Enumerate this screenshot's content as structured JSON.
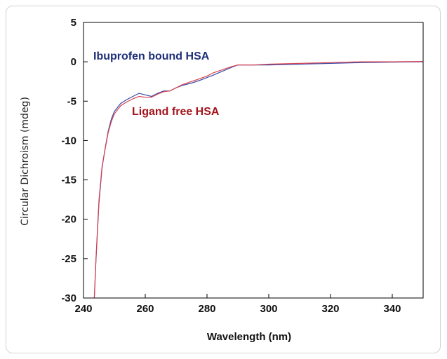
{
  "chart_data": {
    "type": "line",
    "title": "",
    "xlabel": "Wavelength (nm)",
    "ylabel": "Circular Dichroism (mdeg)",
    "xlim": [
      240,
      350
    ],
    "ylim": [
      -30,
      5
    ],
    "xticks": [
      240,
      260,
      280,
      300,
      320,
      340
    ],
    "yticks": [
      5,
      0,
      -5,
      -10,
      -15,
      -20,
      -25,
      -30
    ],
    "xtick_labels": [
      "240",
      "260",
      "280",
      "300",
      "320",
      "340"
    ],
    "ytick_labels": [
      "5",
      "0",
      "-5",
      "-10",
      "-15",
      "-20",
      "-25",
      "-30"
    ],
    "grid": false,
    "annotations": [
      {
        "text": "Ibuprofen bound HSA",
        "color": "#1f2f7a",
        "series": "ibuprofen"
      },
      {
        "text": "Ligand free HSA",
        "color": "#a3131b",
        "series": "free"
      }
    ],
    "series": [
      {
        "id": "ibuprofen",
        "color": "#3a4aa8",
        "x": [
          243.5,
          244,
          245,
          246,
          247,
          248,
          249,
          250,
          252,
          254,
          256,
          258,
          260,
          262,
          264,
          266,
          268,
          270,
          272,
          275,
          278,
          280,
          282,
          285,
          288,
          290,
          295,
          300,
          310,
          320,
          330,
          340,
          350
        ],
        "y": [
          -30,
          -25.5,
          -18,
          -13.5,
          -11,
          -8.8,
          -7.3,
          -6.3,
          -5.3,
          -4.8,
          -4.4,
          -4.0,
          -4.2,
          -4.4,
          -4.0,
          -3.7,
          -3.7,
          -3.3,
          -3.0,
          -2.7,
          -2.3,
          -2.0,
          -1.7,
          -1.2,
          -0.7,
          -0.4,
          -0.4,
          -0.4,
          -0.3,
          -0.2,
          -0.1,
          -0.05,
          0.0
        ]
      },
      {
        "id": "free",
        "color": "#d9434f",
        "x": [
          243.5,
          244,
          245,
          246,
          247,
          248,
          249,
          250,
          252,
          254,
          256,
          258,
          260,
          262,
          264,
          266,
          268,
          270,
          272,
          275,
          278,
          280,
          282,
          285,
          288,
          290,
          295,
          300,
          310,
          320,
          330,
          340,
          350
        ],
        "y": [
          -30,
          -25.3,
          -17.6,
          -13.3,
          -11.1,
          -9.0,
          -7.6,
          -6.6,
          -5.6,
          -5.1,
          -4.7,
          -4.4,
          -4.5,
          -4.5,
          -4.1,
          -3.8,
          -3.7,
          -3.3,
          -2.9,
          -2.5,
          -2.1,
          -1.8,
          -1.4,
          -1.0,
          -0.6,
          -0.4,
          -0.4,
          -0.3,
          -0.2,
          -0.1,
          0.0,
          0.0,
          0.05
        ]
      }
    ]
  }
}
